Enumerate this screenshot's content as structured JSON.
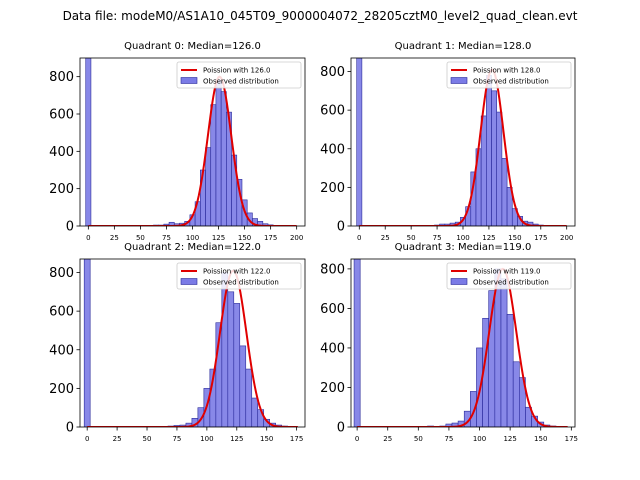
{
  "suptitle": "Data file: modeM0/AS1A10_045T09_9000004072_28205cztM0_level2_quad_clean.evt",
  "colors": {
    "bar_fill": "#7b7be6",
    "bar_edge": "#2a2a9a",
    "curve": "#e00000",
    "axis": "#000000"
  },
  "chart_data": [
    {
      "type": "bar",
      "title": "Quadrant 0: Median=126.0",
      "median": 126.0,
      "bin_width": 5,
      "ylim": [
        0,
        900
      ],
      "yticks": [
        0,
        200,
        400,
        600,
        800
      ],
      "xlim": [
        -8,
        208
      ],
      "xticks": [
        0,
        25,
        50,
        75,
        100,
        125,
        150,
        175,
        200
      ],
      "legend": {
        "position": "top-right",
        "curve_label": "Poission with 126.0",
        "bar_label": "Observed distribution"
      },
      "bars": [
        {
          "x": 0,
          "y": 900
        },
        {
          "x": 60,
          "y": 3
        },
        {
          "x": 65,
          "y": 5
        },
        {
          "x": 70,
          "y": 5
        },
        {
          "x": 75,
          "y": 10
        },
        {
          "x": 80,
          "y": 20
        },
        {
          "x": 85,
          "y": 12
        },
        {
          "x": 90,
          "y": 15
        },
        {
          "x": 95,
          "y": 25
        },
        {
          "x": 100,
          "y": 60
        },
        {
          "x": 105,
          "y": 130
        },
        {
          "x": 110,
          "y": 300
        },
        {
          "x": 115,
          "y": 420
        },
        {
          "x": 120,
          "y": 650
        },
        {
          "x": 125,
          "y": 780
        },
        {
          "x": 130,
          "y": 720
        },
        {
          "x": 135,
          "y": 610
        },
        {
          "x": 140,
          "y": 380
        },
        {
          "x": 145,
          "y": 250
        },
        {
          "x": 150,
          "y": 140
        },
        {
          "x": 155,
          "y": 70
        },
        {
          "x": 160,
          "y": 40
        },
        {
          "x": 165,
          "y": 25
        },
        {
          "x": 170,
          "y": 12
        },
        {
          "x": 175,
          "y": 6
        },
        {
          "x": 180,
          "y": 3
        }
      ],
      "curve": {
        "mean": 126.0,
        "amplitude": 800,
        "sigma": 11.2,
        "x_range": [
          0,
          200
        ]
      }
    },
    {
      "type": "bar",
      "title": "Quadrant 1: Median=128.0",
      "median": 128.0,
      "bin_width": 5,
      "ylim": [
        0,
        870
      ],
      "yticks": [
        0,
        200,
        400,
        600,
        800
      ],
      "xlim": [
        -8,
        208
      ],
      "xticks": [
        0,
        25,
        50,
        75,
        100,
        125,
        150,
        175,
        200
      ],
      "legend": {
        "position": "top-right",
        "curve_label": "Poission with 128.0",
        "bar_label": "Observed distribution"
      },
      "bars": [
        {
          "x": 0,
          "y": 870
        },
        {
          "x": 75,
          "y": 5
        },
        {
          "x": 80,
          "y": 10
        },
        {
          "x": 85,
          "y": 10
        },
        {
          "x": 90,
          "y": 15
        },
        {
          "x": 95,
          "y": 20
        },
        {
          "x": 100,
          "y": 45
        },
        {
          "x": 105,
          "y": 100
        },
        {
          "x": 110,
          "y": 280
        },
        {
          "x": 115,
          "y": 400
        },
        {
          "x": 120,
          "y": 570
        },
        {
          "x": 125,
          "y": 780
        },
        {
          "x": 130,
          "y": 700
        },
        {
          "x": 135,
          "y": 590
        },
        {
          "x": 140,
          "y": 350
        },
        {
          "x": 145,
          "y": 200
        },
        {
          "x": 150,
          "y": 90
        },
        {
          "x": 155,
          "y": 50
        },
        {
          "x": 160,
          "y": 25
        },
        {
          "x": 165,
          "y": 20
        },
        {
          "x": 170,
          "y": 10
        },
        {
          "x": 175,
          "y": 5
        }
      ],
      "curve": {
        "mean": 128.0,
        "amplitude": 810,
        "sigma": 11.0,
        "x_range": [
          0,
          200
        ]
      }
    },
    {
      "type": "bar",
      "title": "Quadrant 2: Median=122.0",
      "median": 122.0,
      "bin_width": 5,
      "ylim": [
        0,
        870
      ],
      "yticks": [
        0,
        200,
        400,
        600,
        800
      ],
      "xlim": [
        -6,
        182
      ],
      "xticks": [
        0,
        25,
        50,
        75,
        100,
        125,
        150,
        175
      ],
      "legend": {
        "position": "top-right",
        "curve_label": "Poission with 122.0",
        "bar_label": "Observed distribution"
      },
      "bars": [
        {
          "x": 0,
          "y": 870
        },
        {
          "x": 60,
          "y": 3
        },
        {
          "x": 70,
          "y": 5
        },
        {
          "x": 75,
          "y": 8
        },
        {
          "x": 80,
          "y": 10
        },
        {
          "x": 85,
          "y": 20
        },
        {
          "x": 90,
          "y": 45
        },
        {
          "x": 95,
          "y": 100
        },
        {
          "x": 100,
          "y": 200
        },
        {
          "x": 105,
          "y": 300
        },
        {
          "x": 110,
          "y": 540
        },
        {
          "x": 115,
          "y": 800
        },
        {
          "x": 120,
          "y": 700
        },
        {
          "x": 125,
          "y": 640
        },
        {
          "x": 130,
          "y": 420
        },
        {
          "x": 135,
          "y": 300
        },
        {
          "x": 140,
          "y": 150
        },
        {
          "x": 145,
          "y": 90
        },
        {
          "x": 150,
          "y": 40
        },
        {
          "x": 155,
          "y": 20
        },
        {
          "x": 160,
          "y": 10
        },
        {
          "x": 165,
          "y": 5
        }
      ],
      "curve": {
        "mean": 122.0,
        "amplitude": 810,
        "sigma": 11.0,
        "x_range": [
          0,
          176
        ]
      }
    },
    {
      "type": "bar",
      "title": "Quadrant 3: Median=119.0",
      "median": 119.0,
      "bin_width": 5,
      "ylim": [
        0,
        850
      ],
      "yticks": [
        0,
        200,
        400,
        600,
        800
      ],
      "xlim": [
        -5,
        178
      ],
      "xticks": [
        0,
        25,
        50,
        75,
        100,
        125,
        150,
        175
      ],
      "legend": {
        "position": "top-right",
        "curve_label": "Poission with 119.0",
        "bar_label": "Observed distribution"
      },
      "bars": [
        {
          "x": 0,
          "y": 850
        },
        {
          "x": 45,
          "y": 3
        },
        {
          "x": 60,
          "y": 5
        },
        {
          "x": 70,
          "y": 5
        },
        {
          "x": 75,
          "y": 15
        },
        {
          "x": 80,
          "y": 20
        },
        {
          "x": 85,
          "y": 30
        },
        {
          "x": 90,
          "y": 80
        },
        {
          "x": 95,
          "y": 180
        },
        {
          "x": 100,
          "y": 400
        },
        {
          "x": 105,
          "y": 550
        },
        {
          "x": 110,
          "y": 690
        },
        {
          "x": 115,
          "y": 800
        },
        {
          "x": 120,
          "y": 750
        },
        {
          "x": 125,
          "y": 570
        },
        {
          "x": 130,
          "y": 330
        },
        {
          "x": 135,
          "y": 250
        },
        {
          "x": 140,
          "y": 100
        },
        {
          "x": 145,
          "y": 55
        },
        {
          "x": 150,
          "y": 25
        },
        {
          "x": 155,
          "y": 10
        },
        {
          "x": 160,
          "y": 5
        }
      ],
      "curve": {
        "mean": 119.0,
        "amplitude": 800,
        "sigma": 11.0,
        "x_range": [
          0,
          172
        ]
      }
    }
  ]
}
